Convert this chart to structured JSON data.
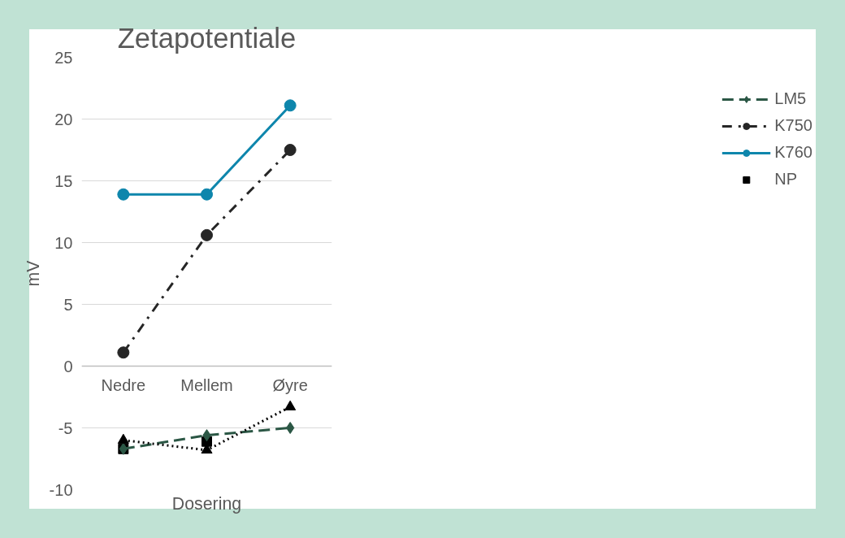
{
  "chart_data": {
    "type": "line",
    "title": "Zetapotentiale",
    "xlabel": "Dosering",
    "ylabel": "mV",
    "categories": [
      "Nedre",
      "Mellem",
      "Øyre"
    ],
    "series": [
      {
        "name": "LM5",
        "color": "#2b5745",
        "marker": "diamond",
        "line_style": "dashed",
        "values": [
          -6.7,
          -5.6,
          -5.0
        ]
      },
      {
        "name": "K750",
        "color": "#262626",
        "marker": "circle",
        "line_style": "dashdot",
        "values": [
          1.1,
          10.6,
          17.5
        ]
      },
      {
        "name": "K760",
        "color": "#0e86ac",
        "marker": "circle",
        "line_style": "solid",
        "values": [
          13.9,
          13.9,
          21.1
        ]
      },
      {
        "color": "#000000",
        "marker": "triangle",
        "line_style": "dotted",
        "values": [
          -6.0,
          -6.8,
          -3.3
        ]
      },
      {
        "name": "NP",
        "type": "scatter",
        "color": "#000000",
        "marker": "square",
        "values": [
          -6.7,
          -6.1,
          null
        ]
      }
    ],
    "ylim": [
      -10,
      25
    ],
    "yticks": [
      -10,
      -5,
      0,
      5,
      10,
      15,
      20,
      25
    ],
    "grid": "y",
    "legend": "right"
  }
}
